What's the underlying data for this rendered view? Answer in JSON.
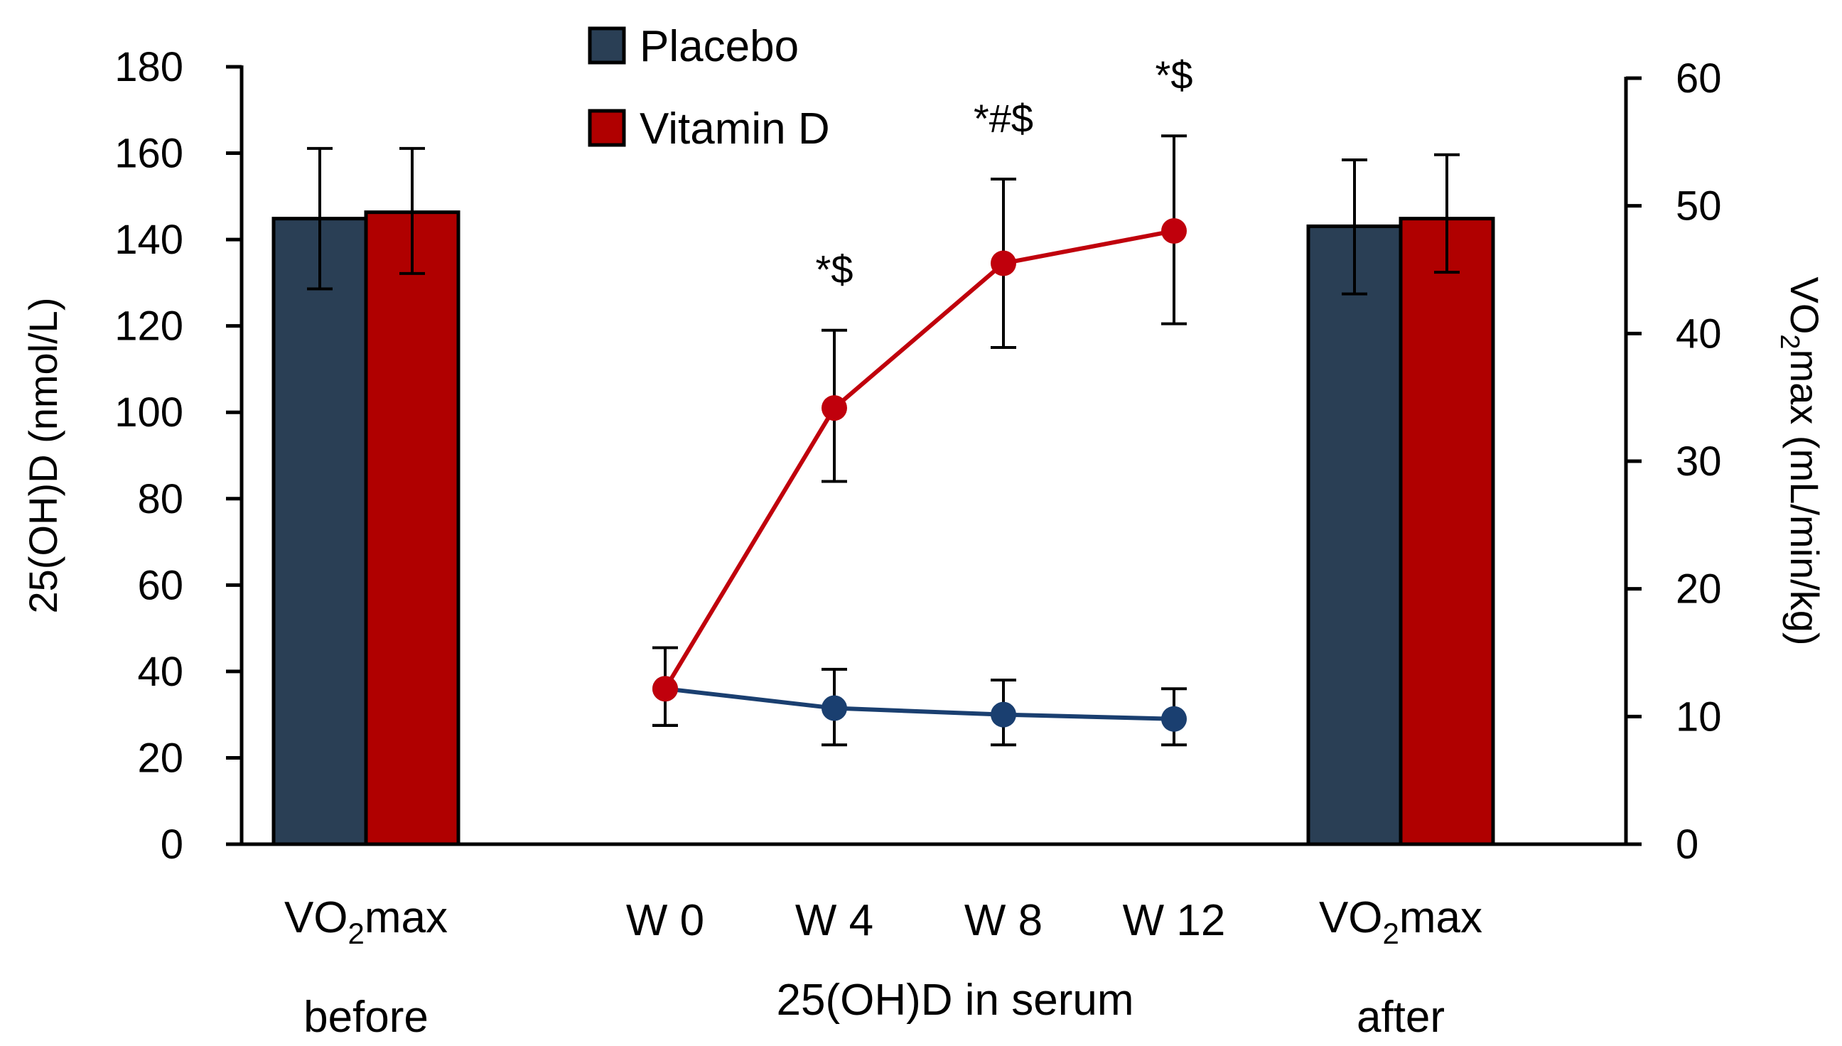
{
  "chart_data": {
    "type": "bar+line",
    "left_axis": {
      "label": "25(OH)D (nmol/L)",
      "ylim": [
        0,
        180
      ],
      "ticks": [
        0,
        20,
        40,
        60,
        80,
        100,
        120,
        140,
        160,
        180
      ]
    },
    "right_axis": {
      "label_prefix": "VO",
      "label_sub": "2",
      "label_suffix": "max (mL/min/kg)",
      "ylim": [
        0,
        60
      ],
      "ticks": [
        0,
        10,
        20,
        30,
        40,
        50,
        60
      ]
    },
    "legend": [
      {
        "name": "Placebo",
        "color": "#2a3f55"
      },
      {
        "name": "Vitamin D",
        "color": "#b00000"
      }
    ],
    "bar_groups": [
      {
        "label_main": "VO",
        "label_sub": "2",
        "label_suffix": "max",
        "label_line2": "before",
        "bars": [
          {
            "series": "Placebo",
            "value": 49.0,
            "err_low": 43.5,
            "err_high": 54.5
          },
          {
            "series": "Vitamin D",
            "value": 49.5,
            "err_low": 44.7,
            "err_high": 54.5
          }
        ]
      },
      {
        "label_main": "VO",
        "label_sub": "2",
        "label_suffix": "max",
        "label_line2": "after",
        "bars": [
          {
            "series": "Placebo",
            "value": 48.4,
            "err_low": 43.1,
            "err_high": 53.6
          },
          {
            "series": "Vitamin D",
            "value": 49.0,
            "err_low": 44.8,
            "err_high": 54.0
          }
        ]
      }
    ],
    "line_categories": [
      "W 0",
      "W 4",
      "W 8",
      "W 12"
    ],
    "line_axis_label": "25(OH)D in serum",
    "line_series": [
      {
        "name": "Placebo",
        "color": "#1a3f70",
        "values": [
          36.0,
          31.5,
          30.0,
          29.0
        ],
        "err_low": [
          27.5,
          23.0,
          23.0,
          23.0
        ],
        "err_high": [
          45.5,
          40.5,
          38.0,
          36.0
        ]
      },
      {
        "name": "Vitamin D",
        "color": "#c0000c",
        "values": [
          36.0,
          101.0,
          134.5,
          142.0
        ],
        "err_low": [
          27.5,
          84.0,
          115.0,
          120.5
        ],
        "err_high": [
          45.5,
          119.0,
          154.0,
          164.0
        ]
      }
    ],
    "annotations": [
      {
        "category": "W 4",
        "text": "*$"
      },
      {
        "category": "W 8",
        "text": "*#$"
      },
      {
        "category": "W 12",
        "text": "*$"
      }
    ]
  }
}
